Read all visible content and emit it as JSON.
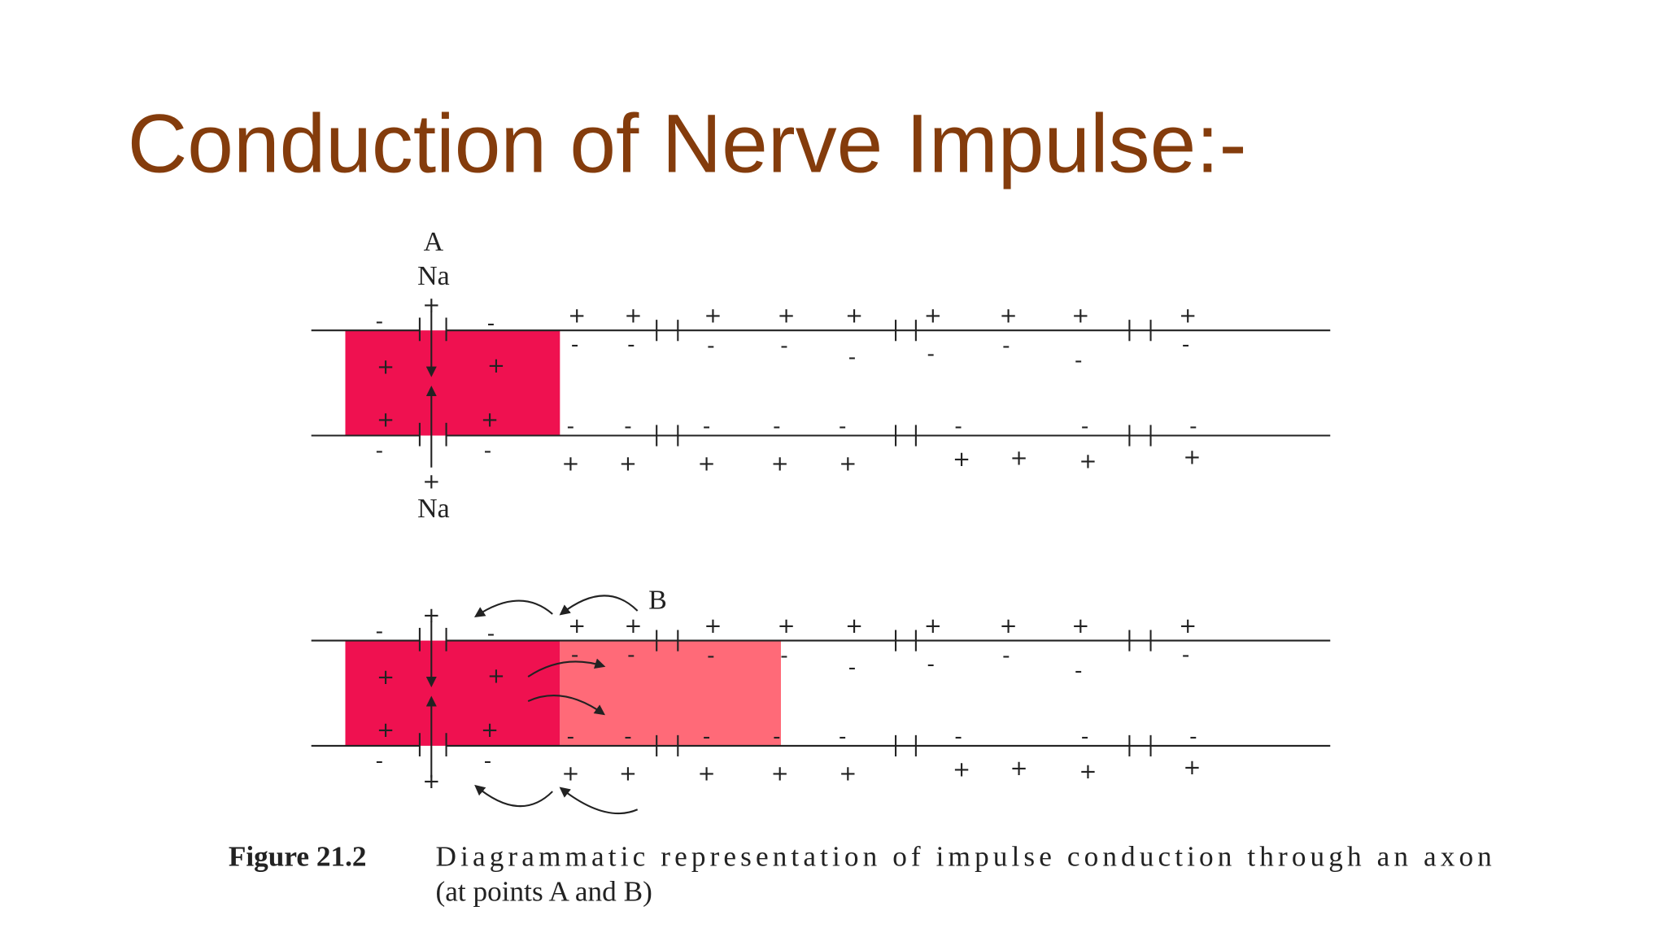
{
  "title": "Conduction of Nerve Impulse:-",
  "diagram": {
    "labels": {
      "point_a": "A",
      "na_top": "Na",
      "na_bottom": "Na",
      "point_b": "B"
    },
    "signs": {
      "plus": "+",
      "minus": "-"
    }
  },
  "caption": {
    "label": "Figure 21.2",
    "text": "Diagrammatic representation of impulse conduction through an axon",
    "text_line2": "(at points A and B)"
  }
}
